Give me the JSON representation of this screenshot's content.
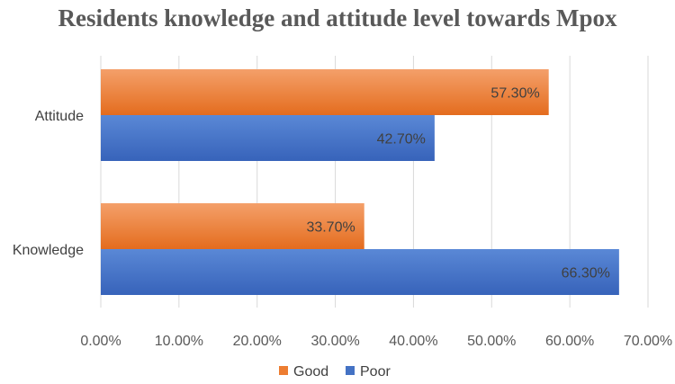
{
  "chart_data": {
    "type": "bar",
    "orientation": "horizontal",
    "title": "Residents knowledge and attitude level towards Mpox",
    "categories": [
      "Attitude",
      "Knowledge"
    ],
    "series": [
      {
        "name": "Good",
        "color": "#ED7D31",
        "values": [
          57.3,
          33.7
        ],
        "labels": [
          "57.30%",
          "33.70%"
        ]
      },
      {
        "name": "Poor",
        "color": "#4472C4",
        "values": [
          42.7,
          66.3
        ],
        "labels": [
          "42.70%",
          "66.30%"
        ]
      }
    ],
    "xlim": [
      0,
      70
    ],
    "xticks": [
      0,
      10,
      20,
      30,
      40,
      50,
      60,
      70
    ],
    "xtick_labels": [
      "0.00%",
      "10.00%",
      "20.00%",
      "30.00%",
      "40.00%",
      "50.00%",
      "60.00%",
      "70.00%"
    ],
    "grid": true,
    "legend": "bottom",
    "gridline_color": "#D9D9D9"
  }
}
